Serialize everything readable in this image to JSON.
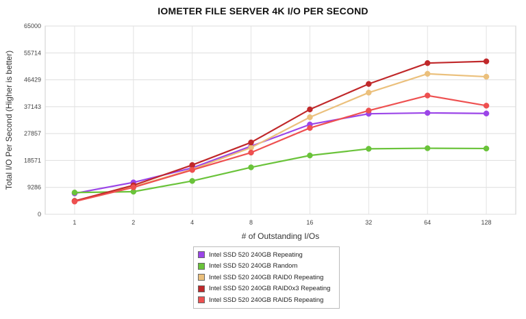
{
  "chart_data": {
    "type": "line",
    "title": "IOMETER FILE SERVER 4K I/O PER SECOND",
    "xlabel": "# of Outstanding I/Os",
    "ylabel": "Total I/O Per Second (Higher is better)",
    "categories": [
      "1",
      "2",
      "4",
      "8",
      "16",
      "32",
      "64",
      "128"
    ],
    "y_ticks": [
      "0",
      "9286",
      "18571",
      "27857",
      "37143",
      "46429",
      "55714",
      "65000"
    ],
    "ylim": [
      0,
      65000
    ],
    "grid": true,
    "legend_position": "bottom",
    "series": [
      {
        "name": "Intel SSD 520 240GB Repeating",
        "color": "#9b45e8",
        "values": [
          7200,
          11000,
          16000,
          23500,
          31000,
          34700,
          35000,
          34800
        ]
      },
      {
        "name": "Intel SSD 520 240GB Random",
        "color": "#6ac33a",
        "values": [
          7500,
          7800,
          11500,
          16200,
          20300,
          22600,
          22800,
          22700
        ]
      },
      {
        "name": "Intel SSD 520 240GB RAID0 Repeating",
        "color": "#ebc07c",
        "values": [
          4600,
          9500,
          15500,
          23000,
          33500,
          42000,
          48500,
          47500
        ]
      },
      {
        "name": "Intel SSD 520 240GB RAID0x3 Repeating",
        "color": "#c0282a",
        "values": [
          4600,
          10000,
          17000,
          24800,
          36200,
          45000,
          52200,
          52800
        ]
      },
      {
        "name": "Intel SSD 520 240GB RAID5 Repeating",
        "color": "#ee5050",
        "values": [
          4400,
          9300,
          15300,
          21300,
          29800,
          35800,
          41000,
          37500
        ]
      }
    ]
  }
}
